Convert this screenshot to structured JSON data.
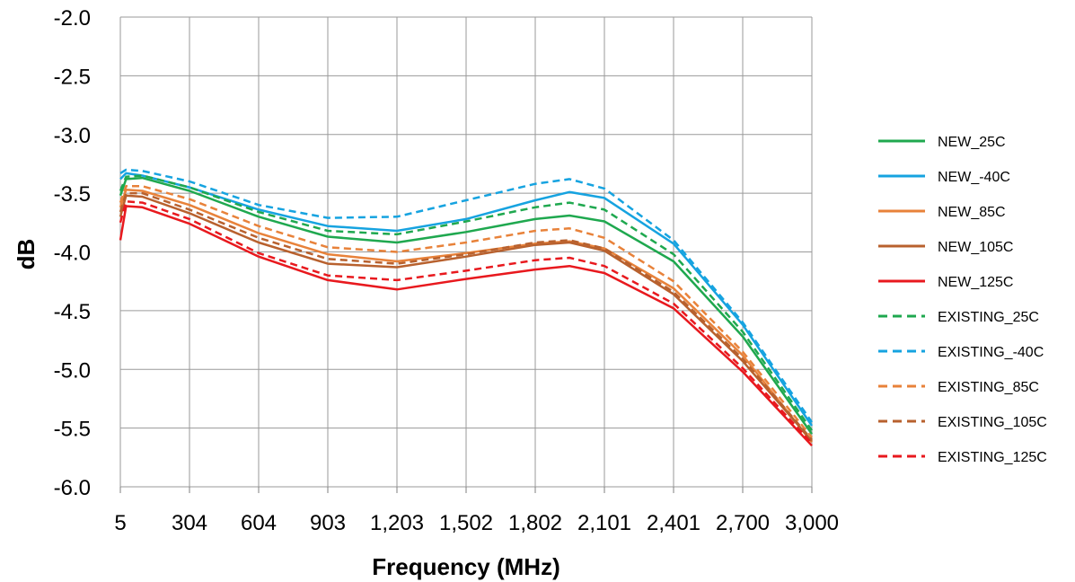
{
  "chart_data": {
    "type": "line",
    "title": "",
    "xlabel": "Frequency (MHz)",
    "ylabel": "dB",
    "xlim": [
      5,
      3000
    ],
    "ylim": [
      -6.0,
      -2.0
    ],
    "x_ticks": [
      5,
      304,
      604,
      903,
      1203,
      1502,
      1802,
      2101,
      2401,
      2700,
      3000
    ],
    "x_tick_labels": [
      "5",
      "304",
      "604",
      "903",
      "1,203",
      "1,502",
      "1,802",
      "2,101",
      "2,401",
      "2,700",
      "3,000"
    ],
    "y_ticks": [
      -2.0,
      -2.5,
      -3.0,
      -3.5,
      -4.0,
      -4.5,
      -5.0,
      -5.5,
      -6.0
    ],
    "y_tick_labels": [
      "-2.0",
      "-2.5",
      "-3.0",
      "-3.5",
      "-4.0",
      "-4.5",
      "-5.0",
      "-5.5",
      "-6.0"
    ],
    "grid": true,
    "legend_position": "right",
    "x": [
      5,
      30,
      100,
      304,
      604,
      903,
      1203,
      1502,
      1802,
      1950,
      2101,
      2401,
      2700,
      3000
    ],
    "series": [
      {
        "name": "NEW_25C",
        "color": "#1fa84f",
        "style": "solid",
        "values": [
          -3.52,
          -3.38,
          -3.37,
          -3.48,
          -3.7,
          -3.87,
          -3.92,
          -3.83,
          -3.72,
          -3.69,
          -3.74,
          -4.08,
          -4.72,
          -5.55
        ]
      },
      {
        "name": "NEW_-40C",
        "color": "#16a3e0",
        "style": "solid",
        "values": [
          -3.38,
          -3.33,
          -3.35,
          -3.45,
          -3.64,
          -3.78,
          -3.82,
          -3.72,
          -3.56,
          -3.49,
          -3.54,
          -3.93,
          -4.62,
          -5.48
        ]
      },
      {
        "name": "NEW_85C",
        "color": "#e8823a",
        "style": "solid",
        "values": [
          -3.62,
          -3.47,
          -3.48,
          -3.6,
          -3.84,
          -4.02,
          -4.08,
          -4.01,
          -3.93,
          -3.91,
          -3.97,
          -4.31,
          -4.88,
          -5.62
        ]
      },
      {
        "name": "NEW_105C",
        "color": "#b8612e",
        "style": "solid",
        "values": [
          -3.7,
          -3.52,
          -3.53,
          -3.67,
          -3.92,
          -4.1,
          -4.13,
          -4.04,
          -3.94,
          -3.92,
          -3.99,
          -4.36,
          -4.93,
          -5.61
        ]
      },
      {
        "name": "NEW_125C",
        "color": "#e8191e",
        "style": "solid",
        "values": [
          -3.9,
          -3.61,
          -3.62,
          -3.76,
          -4.04,
          -4.24,
          -4.32,
          -4.23,
          -4.15,
          -4.12,
          -4.18,
          -4.48,
          -5.02,
          -5.65
        ]
      },
      {
        "name": "EXISTING_25C",
        "color": "#1fa84f",
        "style": "dashed",
        "values": [
          -3.48,
          -3.36,
          -3.35,
          -3.45,
          -3.66,
          -3.82,
          -3.85,
          -3.74,
          -3.62,
          -3.58,
          -3.64,
          -4.02,
          -4.68,
          -5.52
        ]
      },
      {
        "name": "EXISTING_-40C",
        "color": "#16a3e0",
        "style": "dashed",
        "values": [
          -3.33,
          -3.3,
          -3.31,
          -3.4,
          -3.6,
          -3.71,
          -3.7,
          -3.56,
          -3.42,
          -3.38,
          -3.46,
          -3.9,
          -4.6,
          -5.45
        ]
      },
      {
        "name": "EXISTING_85C",
        "color": "#e8823a",
        "style": "dashed",
        "values": [
          -3.58,
          -3.44,
          -3.44,
          -3.55,
          -3.78,
          -3.96,
          -4.0,
          -3.92,
          -3.82,
          -3.8,
          -3.88,
          -4.25,
          -4.85,
          -5.58
        ]
      },
      {
        "name": "EXISTING_105C",
        "color": "#b8612e",
        "style": "dashed",
        "values": [
          -3.66,
          -3.5,
          -3.5,
          -3.64,
          -3.88,
          -4.06,
          -4.1,
          -4.02,
          -3.92,
          -3.9,
          -3.97,
          -4.34,
          -4.91,
          -5.6
        ]
      },
      {
        "name": "EXISTING_125C",
        "color": "#e8191e",
        "style": "dashed",
        "values": [
          -3.75,
          -3.57,
          -3.58,
          -3.72,
          -4.01,
          -4.2,
          -4.24,
          -4.16,
          -4.07,
          -4.05,
          -4.12,
          -4.44,
          -4.99,
          -5.63
        ]
      }
    ]
  }
}
